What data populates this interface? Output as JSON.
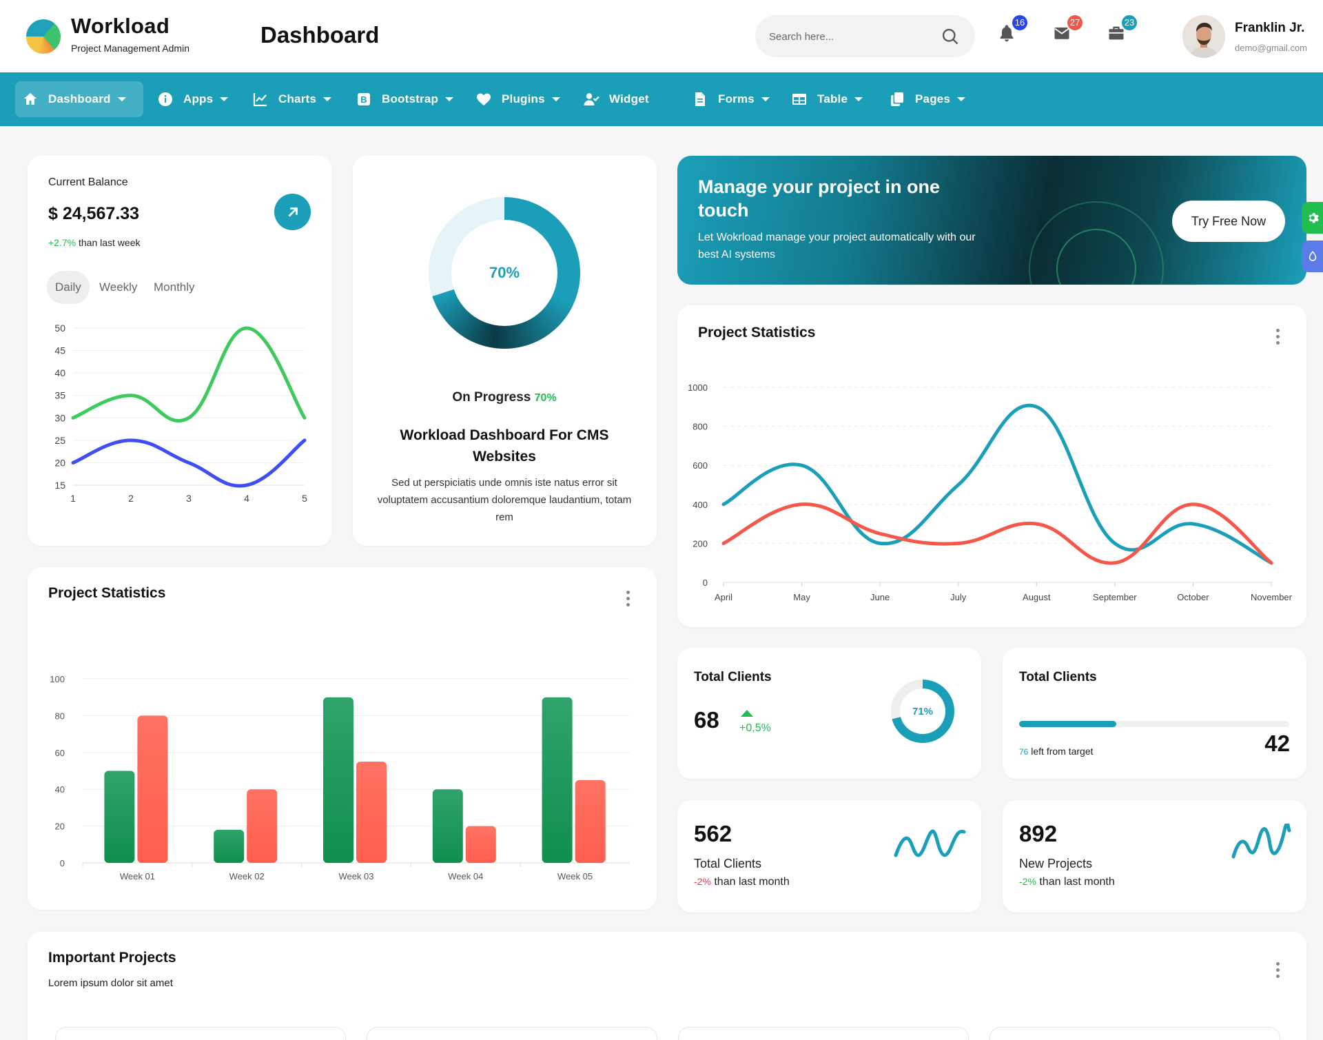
{
  "brand": {
    "name": "Workload",
    "subtitle": "Project Management Admin"
  },
  "page_title": "Dashboard",
  "search": {
    "placeholder": "Search here..."
  },
  "notifications": [
    {
      "icon": "bell-icon",
      "count": "16",
      "color": "#2b46e8"
    },
    {
      "icon": "mail-icon",
      "count": "27",
      "color": "#f0584d"
    },
    {
      "icon": "briefcase-icon",
      "count": "23",
      "color": "#1b9fb9"
    }
  ],
  "user": {
    "name": "Franklin Jr.",
    "email": "demo@gmail.com"
  },
  "nav": [
    {
      "label": "Dashboard",
      "icon": "home-icon",
      "dropdown": true,
      "active": true
    },
    {
      "label": "Apps",
      "icon": "info-icon",
      "dropdown": true
    },
    {
      "label": "Charts",
      "icon": "chart-line-icon",
      "dropdown": true
    },
    {
      "label": "Bootstrap",
      "icon": "bootstrap-icon",
      "dropdown": true
    },
    {
      "label": "Plugins",
      "icon": "heart-icon",
      "dropdown": true
    },
    {
      "label": "Widget",
      "icon": "user-check-icon",
      "dropdown": false
    },
    {
      "label": "Forms",
      "icon": "file-icon",
      "dropdown": true
    },
    {
      "label": "Table",
      "icon": "table-icon",
      "dropdown": true
    },
    {
      "label": "Pages",
      "icon": "copy-icon",
      "dropdown": true
    }
  ],
  "balance": {
    "label": "Current Balance",
    "value": "$ 24,567.33",
    "change": "+2.7%",
    "change_text": " than last week",
    "periods": [
      "Daily",
      "Weekly",
      "Monthly"
    ],
    "active_period": "Daily"
  },
  "progress": {
    "percent_text": "70%",
    "percent": 70,
    "label": "On Progress",
    "label_value": "70%",
    "title": "Workload Dashboard For CMS Websites",
    "description": "Sed ut perspiciatis unde omnis iste natus error sit voluptatem accusantium doloremque laudantium, totam rem"
  },
  "banner": {
    "title": "Manage your project in one touch",
    "text": "Let Wokrload manage your project automatically with our best AI systems",
    "button": "Try Free Now"
  },
  "stats_line_title": "Project Statistics",
  "stats_bar_title": "Project Statistics",
  "clients_ring": {
    "title": "Total Clients",
    "value": "68",
    "change": "+0,5%",
    "ring_text": "71%",
    "ring_percent": 71
  },
  "clients_progress": {
    "title": "Total Clients",
    "left_value": "76",
    "left_text": " left from target",
    "value": "42",
    "fill_fraction": 0.36
  },
  "card_562": {
    "value": "562",
    "label": "Total Clients",
    "change": "-2%",
    "change_text": " than last month"
  },
  "card_892": {
    "value": "892",
    "label": "New Projects",
    "change": "-2%",
    "change_text": " than last month"
  },
  "important": {
    "title": "Important Projects",
    "subtitle": "Lorem ipsum dolor sit amet"
  },
  "colors": {
    "accent": "#1b9fb9",
    "green": "#1fbe4f",
    "red": "#f0384f",
    "bar_green": "#0f8f4e",
    "bar_red": "#ff5e4f",
    "line_red": "#f5574a",
    "line_blue": "#3f4ef0",
    "line_green": "#3dc95e"
  },
  "chart_data": [
    {
      "type": "line",
      "x": [
        1,
        2,
        3,
        4,
        5
      ],
      "series": [
        {
          "values": [
            30,
            35,
            30,
            50,
            30
          ],
          "color": "#3dc95e"
        },
        {
          "values": [
            20,
            25,
            20,
            15,
            25
          ],
          "color": "#3f4ef0"
        }
      ],
      "ylim": [
        15,
        50
      ],
      "yticks": [
        15,
        20,
        25,
        30,
        35,
        40,
        45,
        50
      ],
      "grid": true
    },
    {
      "type": "line",
      "categories": [
        "April",
        "May",
        "June",
        "July",
        "August",
        "September",
        "October",
        "November"
      ],
      "series": [
        {
          "values": [
            400,
            600,
            200,
            500,
            900,
            200,
            300,
            100
          ],
          "color": "#1b9fb9"
        },
        {
          "values": [
            200,
            400,
            250,
            200,
            300,
            100,
            400,
            100
          ],
          "color": "#f5574a"
        }
      ],
      "ylim": [
        0,
        1000
      ],
      "yticks": [
        0,
        200,
        400,
        600,
        800,
        1000
      ],
      "grid": true
    },
    {
      "type": "bar",
      "categories": [
        "Week 01",
        "Week 02",
        "Week 03",
        "Week 04",
        "Week 05"
      ],
      "series": [
        {
          "values": [
            50,
            18,
            90,
            40,
            90
          ],
          "color": "#0f8f4e"
        },
        {
          "values": [
            80,
            40,
            55,
            20,
            45
          ],
          "color": "#ff5e4f"
        }
      ],
      "ylim": [
        0,
        100
      ],
      "yticks": [
        0,
        20,
        40,
        60,
        80,
        100
      ],
      "grid": true
    }
  ]
}
